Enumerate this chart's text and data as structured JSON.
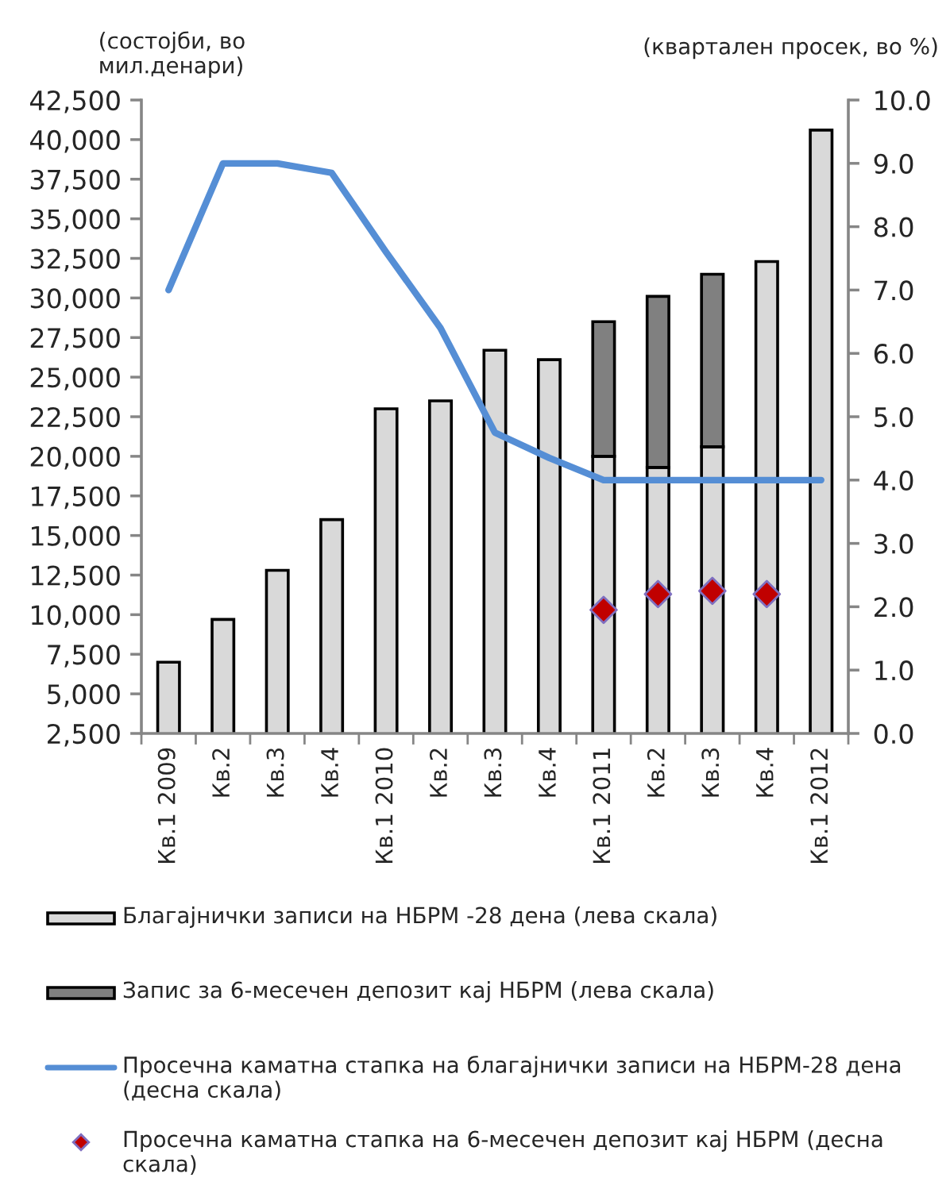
{
  "chart_data": {
    "type": "bar",
    "stacked": true,
    "categories": [
      "Кв.1 2009",
      "Кв.2",
      "Кв.3",
      "Кв.4",
      "Кв.1 2010",
      "Кв.2",
      "Кв.3",
      "Кв.4",
      "Кв.1 2011",
      "Кв.2",
      "Кв.3",
      "Кв.4",
      "Кв.1 2012"
    ],
    "ylabel": "(состојби, во\nмил.денари)",
    "y2label": "(квартален просек, во %)",
    "ylim": [
      2500,
      42500
    ],
    "yticks": [
      {
        "value": 2500,
        "label": "2,500"
      },
      {
        "value": 5000,
        "label": "5,000"
      },
      {
        "value": 7500,
        "label": "7,500"
      },
      {
        "value": 10000,
        "label": "10,000"
      },
      {
        "value": 12500,
        "label": "12,500"
      },
      {
        "value": 15000,
        "label": "15,000"
      },
      {
        "value": 17500,
        "label": "17,500"
      },
      {
        "value": 20000,
        "label": "20,000"
      },
      {
        "value": 22500,
        "label": "22,500"
      },
      {
        "value": 25000,
        "label": "25,000"
      },
      {
        "value": 27500,
        "label": "27,500"
      },
      {
        "value": 30000,
        "label": "30,000"
      },
      {
        "value": 32500,
        "label": "32,500"
      },
      {
        "value": 35000,
        "label": "35,000"
      },
      {
        "value": 37500,
        "label": "37,500"
      },
      {
        "value": 40000,
        "label": "40,000"
      },
      {
        "value": 42500,
        "label": "42,500"
      }
    ],
    "y2lim": [
      0,
      10
    ],
    "y2ticks": [
      {
        "value": 0,
        "label": "0.0"
      },
      {
        "value": 1,
        "label": "1.0"
      },
      {
        "value": 2,
        "label": "2.0"
      },
      {
        "value": 3,
        "label": "3.0"
      },
      {
        "value": 4,
        "label": "4.0"
      },
      {
        "value": 5,
        "label": "5.0"
      },
      {
        "value": 6,
        "label": "6.0"
      },
      {
        "value": 7,
        "label": "7.0"
      },
      {
        "value": 8,
        "label": "8.0"
      },
      {
        "value": 9,
        "label": "9.0"
      },
      {
        "value": 10,
        "label": "10.0"
      }
    ],
    "legend": "bottom",
    "series": [
      {
        "name": "Благајнички записи на НБРМ -28 дена (лева скала)",
        "color": "#d9d9d9",
        "values": [
          7000,
          9700,
          12800,
          16000,
          23000,
          23500,
          26700,
          26100,
          20000,
          19300,
          20600,
          32300,
          40600
        ]
      },
      {
        "name": "Запис за 6-месечен депозит кај НБРМ (лева скала)",
        "color": "#808080",
        "values": [
          null,
          null,
          null,
          null,
          null,
          null,
          null,
          null,
          8500,
          10800,
          10900,
          null,
          null
        ]
      },
      {
        "name": "Просечна каматна стапка на благајнички записи на НБРМ-28 дена (десна скала)",
        "type": "line",
        "axis": "y2",
        "color": "#558ed5",
        "marker": "none",
        "line_style": "solid",
        "values": [
          7.0,
          9.0,
          9.0,
          8.85,
          7.6,
          6.4,
          4.75,
          4.35,
          4.0,
          4.0,
          4.0,
          4.0,
          4.0
        ]
      },
      {
        "name": "Просечна каматна стапка на 6-месечен депозит кај НБРМ (десна скала)",
        "type": "scatter",
        "axis": "y2",
        "color": "#c00000",
        "marker": "diamond",
        "values": [
          null,
          null,
          null,
          null,
          null,
          null,
          null,
          null,
          1.95,
          2.2,
          2.25,
          2.2,
          null
        ]
      }
    ]
  }
}
